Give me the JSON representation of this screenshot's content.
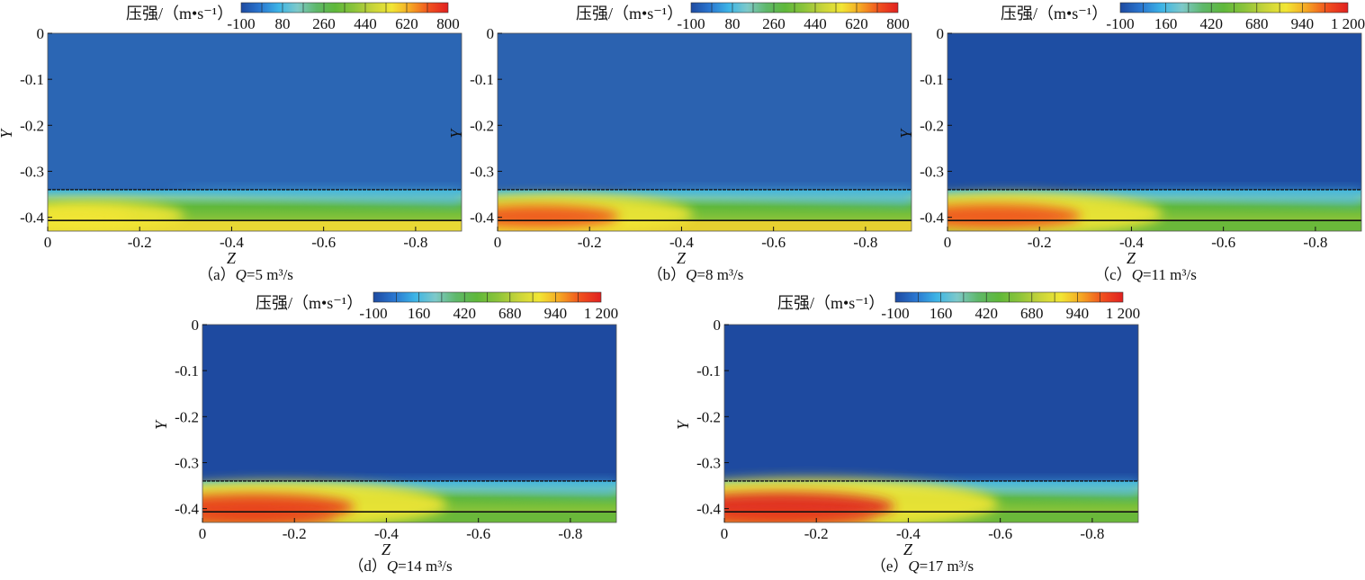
{
  "chart_data": {
    "type": "heatmap",
    "colorbar_title": "压强/（m•s⁻¹）",
    "xlabel": "Z",
    "ylabel": "Y",
    "xlim": [
      0,
      -0.9
    ],
    "ylim": [
      0,
      -0.43
    ],
    "x_ticks": [
      "0",
      "-0.2",
      "-0.4",
      "-0.6",
      "-0.8"
    ],
    "x_tick_values": [
      0,
      -0.2,
      -0.4,
      -0.6,
      -0.8
    ],
    "y_ticks": [
      "0",
      "-0.1",
      "-0.2",
      "-0.3",
      "-0.4"
    ],
    "y_tick_values": [
      0,
      -0.1,
      -0.2,
      -0.3,
      -0.4
    ],
    "interface_dashed_y": -0.34,
    "interface_solid_y": -0.407,
    "colormap": [
      "#1e4aa0",
      "#2a76d0",
      "#3cb4e6",
      "#7ec9c9",
      "#5fb86a",
      "#5fb83a",
      "#8cc43a",
      "#c8d43a",
      "#f2e634",
      "#f5a623",
      "#f0501e",
      "#e02020"
    ],
    "panels": [
      {
        "id": "a",
        "caption_pre": "（a）",
        "q": "Q",
        "caption_post": "=5 m³/s",
        "colorbar_min": -100,
        "colorbar_max": 800,
        "colorbar_ticks": [
          "-100",
          "80",
          "260",
          "440",
          "620",
          "800"
        ],
        "background": "#2b66b4",
        "band_peak": "#f2e634",
        "bottom_layer": "#e8d834",
        "hot": 0.3
      },
      {
        "id": "b",
        "caption_pre": "（b）",
        "q": "Q",
        "caption_post": "=8 m³/s",
        "colorbar_min": -100,
        "colorbar_max": 800,
        "colorbar_ticks": [
          "-100",
          "80",
          "260",
          "440",
          "620",
          "800"
        ],
        "background": "#2b62b0",
        "band_peak": "#f0501e",
        "bottom_layer": "#e6d030",
        "hot": 0.6
      },
      {
        "id": "c",
        "caption_pre": "（c）",
        "q": "Q",
        "caption_post": "=11 m³/s",
        "colorbar_min": -100,
        "colorbar_max": 1200,
        "colorbar_ticks": [
          "-100",
          "160",
          "420",
          "680",
          "940",
          "1 200"
        ],
        "background": "#1e4ea3",
        "band_peak": "#f0501e",
        "bottom_layer": "#6ab83a",
        "hot": 0.7
      },
      {
        "id": "d",
        "caption_pre": "（d）",
        "q": "Q",
        "caption_post": "=14 m³/s",
        "colorbar_min": -100,
        "colorbar_max": 1200,
        "colorbar_ticks": [
          "-100",
          "160",
          "420",
          "680",
          "940",
          "1 200"
        ],
        "background": "#1e4aa0",
        "band_peak": "#e83a1e",
        "bottom_layer": "#6ab83a",
        "hot": 0.85
      },
      {
        "id": "e",
        "caption_pre": "（e）",
        "q": "Q",
        "caption_post": "=17 m³/s",
        "colorbar_min": -100,
        "colorbar_max": 1200,
        "colorbar_ticks": [
          "-100",
          "160",
          "420",
          "680",
          "940",
          "1 200"
        ],
        "background": "#1e4aa0",
        "band_peak": "#e02020",
        "bottom_layer": "#6ab83a",
        "hot": 1.0
      }
    ]
  }
}
